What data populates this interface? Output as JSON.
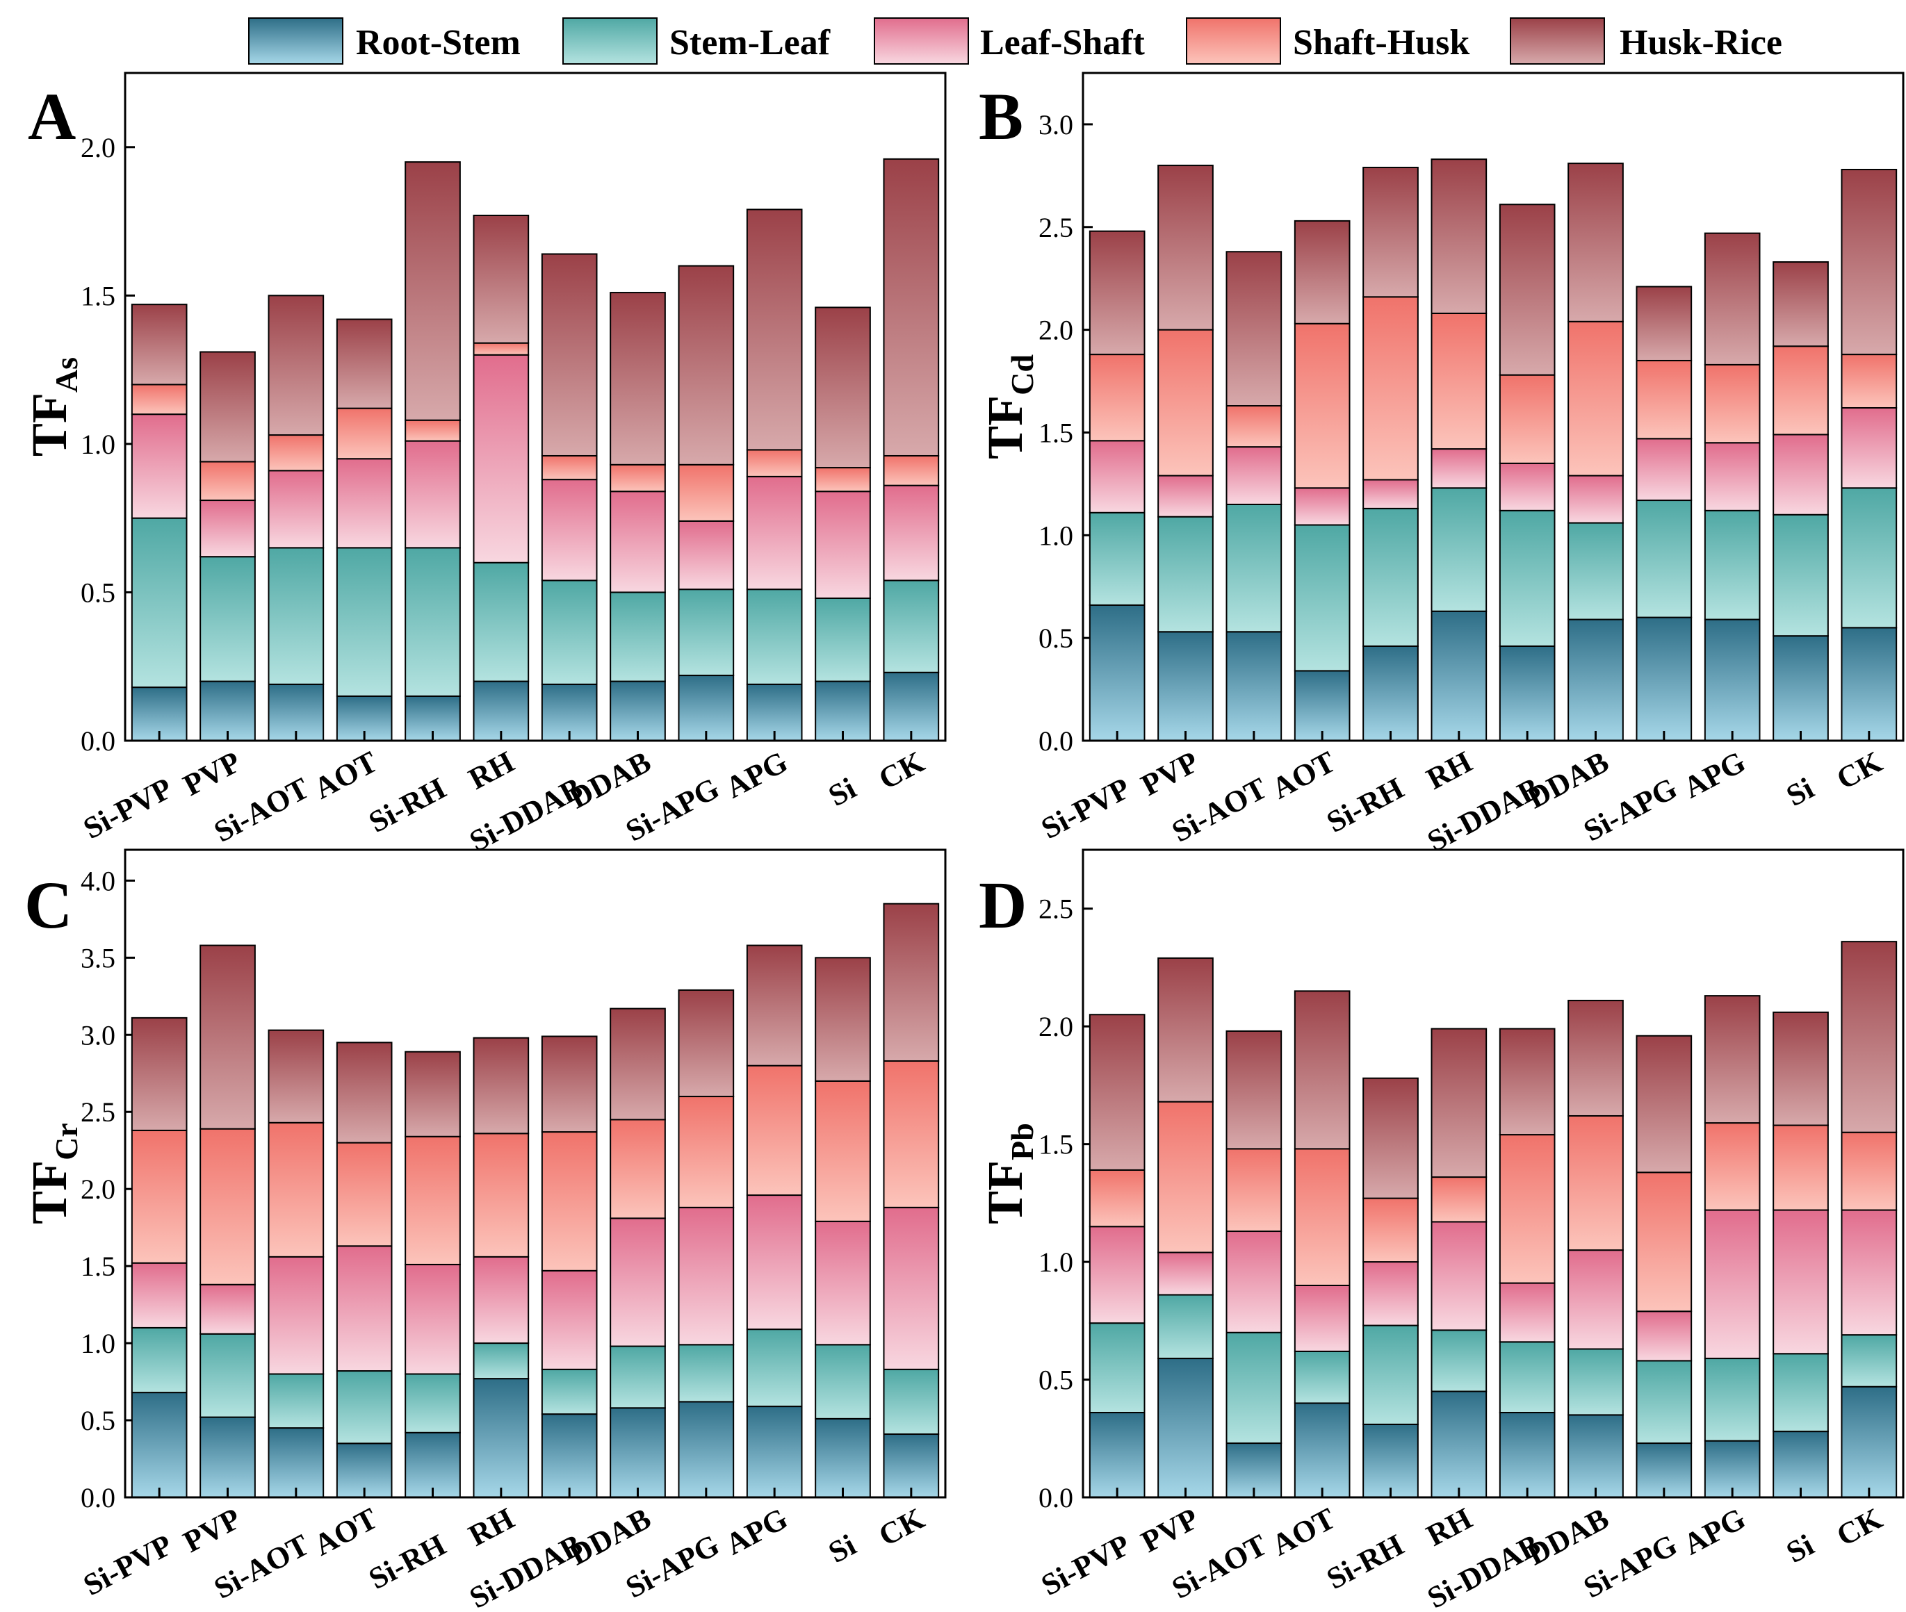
{
  "figure": {
    "segments": [
      "Root-Stem",
      "Stem-Leaf",
      "Leaf-Shaft",
      "Shaft-Husk",
      "Husk-Rice"
    ],
    "colors": {
      "Root-Stem": [
        "#2e6e87",
        "#a6d7e8"
      ],
      "Stem-Leaf": [
        "#4fa8a4",
        "#b4e3e0"
      ],
      "Leaf-Shaft": [
        "#e16d8d",
        "#f8d7e0"
      ],
      "Shaft-Husk": [
        "#f0736b",
        "#fcc4bb"
      ],
      "Husk-Rice": [
        "#9b4148",
        "#d7a9ab"
      ]
    }
  },
  "chart_data": [
    {
      "type": "bar",
      "stacked": true,
      "panel": "A",
      "ylabel": "TF",
      "ylabel_sub": "As",
      "ylim": [
        0,
        2.25
      ],
      "yticks": [
        "0.0",
        "0.5",
        "1.0",
        "1.5",
        "2.0"
      ],
      "categories": [
        "Si-PVP",
        "PVP",
        "Si-AOT",
        "AOT",
        "Si-RH",
        "RH",
        "Si-DDAB",
        "DDAB",
        "Si-APG",
        "APG",
        "Si",
        "CK"
      ],
      "series": [
        {
          "name": "Root-Stem",
          "values": [
            0.18,
            0.2,
            0.19,
            0.15,
            0.15,
            0.2,
            0.19,
            0.2,
            0.22,
            0.19,
            0.2,
            0.23
          ]
        },
        {
          "name": "Stem-Leaf",
          "values": [
            0.57,
            0.42,
            0.46,
            0.5,
            0.5,
            0.4,
            0.35,
            0.3,
            0.29,
            0.32,
            0.28,
            0.31
          ]
        },
        {
          "name": "Leaf-Shaft",
          "values": [
            0.35,
            0.19,
            0.26,
            0.3,
            0.36,
            0.7,
            0.34,
            0.34,
            0.23,
            0.38,
            0.36,
            0.32
          ]
        },
        {
          "name": "Shaft-Husk",
          "values": [
            0.1,
            0.13,
            0.12,
            0.17,
            0.07,
            0.04,
            0.08,
            0.09,
            0.19,
            0.09,
            0.08,
            0.1
          ]
        },
        {
          "name": "Husk-Rice",
          "values": [
            0.27,
            0.37,
            0.47,
            0.3,
            0.87,
            0.43,
            0.68,
            0.58,
            0.67,
            0.81,
            0.54,
            1.0
          ]
        }
      ]
    },
    {
      "type": "bar",
      "stacked": true,
      "panel": "B",
      "ylabel": "TF",
      "ylabel_sub": "Cd",
      "ylim": [
        0,
        3.25
      ],
      "yticks": [
        "0.0",
        "0.5",
        "1.0",
        "1.5",
        "2.0",
        "2.5",
        "3.0"
      ],
      "categories": [
        "Si-PVP",
        "PVP",
        "Si-AOT",
        "AOT",
        "Si-RH",
        "RH",
        "Si-DDAB",
        "DDAB",
        "Si-APG",
        "APG",
        "Si",
        "CK"
      ],
      "series": [
        {
          "name": "Root-Stem",
          "values": [
            0.66,
            0.53,
            0.53,
            0.34,
            0.46,
            0.63,
            0.46,
            0.59,
            0.6,
            0.59,
            0.51,
            0.55
          ]
        },
        {
          "name": "Stem-Leaf",
          "values": [
            0.45,
            0.56,
            0.62,
            0.71,
            0.67,
            0.6,
            0.66,
            0.47,
            0.57,
            0.53,
            0.59,
            0.68
          ]
        },
        {
          "name": "Leaf-Shaft",
          "values": [
            0.35,
            0.2,
            0.28,
            0.18,
            0.14,
            0.19,
            0.23,
            0.23,
            0.3,
            0.33,
            0.39,
            0.39
          ]
        },
        {
          "name": "Shaft-Husk",
          "values": [
            0.42,
            0.71,
            0.2,
            0.8,
            0.89,
            0.66,
            0.43,
            0.75,
            0.38,
            0.38,
            0.43,
            0.26
          ]
        },
        {
          "name": "Husk-Rice",
          "values": [
            0.6,
            0.8,
            0.75,
            0.5,
            0.63,
            0.75,
            0.83,
            0.77,
            0.36,
            0.64,
            0.41,
            0.9
          ]
        }
      ]
    },
    {
      "type": "bar",
      "stacked": true,
      "panel": "C",
      "ylabel": "TF",
      "ylabel_sub": "Cr",
      "ylim": [
        0,
        4.2
      ],
      "yticks": [
        "0.0",
        "0.5",
        "1.0",
        "1.5",
        "2.0",
        "2.5",
        "3.0",
        "3.5",
        "4.0"
      ],
      "categories": [
        "Si-PVP",
        "PVP",
        "Si-AOT",
        "AOT",
        "Si-RH",
        "RH",
        "Si-DDAB",
        "DDAB",
        "Si-APG",
        "APG",
        "Si",
        "CK"
      ],
      "series": [
        {
          "name": "Root-Stem",
          "values": [
            0.68,
            0.52,
            0.45,
            0.35,
            0.42,
            0.77,
            0.54,
            0.58,
            0.62,
            0.59,
            0.51,
            0.41
          ]
        },
        {
          "name": "Stem-Leaf",
          "values": [
            0.42,
            0.54,
            0.35,
            0.47,
            0.38,
            0.23,
            0.29,
            0.4,
            0.37,
            0.5,
            0.48,
            0.42
          ]
        },
        {
          "name": "Leaf-Shaft",
          "values": [
            0.42,
            0.32,
            0.76,
            0.81,
            0.71,
            0.56,
            0.64,
            0.83,
            0.89,
            0.87,
            0.8,
            1.05
          ]
        },
        {
          "name": "Shaft-Husk",
          "values": [
            0.86,
            1.01,
            0.87,
            0.67,
            0.83,
            0.8,
            0.9,
            0.64,
            0.72,
            0.84,
            0.91,
            0.95
          ]
        },
        {
          "name": "Husk-Rice",
          "values": [
            0.73,
            1.19,
            0.6,
            0.65,
            0.55,
            0.62,
            0.62,
            0.72,
            0.69,
            0.78,
            0.8,
            1.02
          ]
        }
      ]
    },
    {
      "type": "bar",
      "stacked": true,
      "panel": "D",
      "ylabel": "TF",
      "ylabel_sub": "Pb",
      "ylim": [
        0,
        2.75
      ],
      "yticks": [
        "0.0",
        "0.5",
        "1.0",
        "1.5",
        "2.0",
        "2.5"
      ],
      "categories": [
        "Si-PVP",
        "PVP",
        "Si-AOT",
        "AOT",
        "Si-RH",
        "RH",
        "Si-DDAB",
        "DDAB",
        "Si-APG",
        "APG",
        "Si",
        "CK"
      ],
      "series": [
        {
          "name": "Root-Stem",
          "values": [
            0.36,
            0.59,
            0.23,
            0.4,
            0.31,
            0.45,
            0.36,
            0.35,
            0.23,
            0.24,
            0.28,
            0.47
          ]
        },
        {
          "name": "Stem-Leaf",
          "values": [
            0.38,
            0.27,
            0.47,
            0.22,
            0.42,
            0.26,
            0.3,
            0.28,
            0.35,
            0.35,
            0.33,
            0.22
          ]
        },
        {
          "name": "Leaf-Shaft",
          "values": [
            0.41,
            0.18,
            0.43,
            0.28,
            0.27,
            0.46,
            0.25,
            0.42,
            0.21,
            0.63,
            0.61,
            0.53
          ]
        },
        {
          "name": "Shaft-Husk",
          "values": [
            0.24,
            0.64,
            0.35,
            0.58,
            0.27,
            0.19,
            0.63,
            0.57,
            0.59,
            0.37,
            0.36,
            0.33
          ]
        },
        {
          "name": "Husk-Rice",
          "values": [
            0.66,
            0.61,
            0.5,
            0.67,
            0.51,
            0.63,
            0.45,
            0.49,
            0.58,
            0.54,
            0.48,
            0.81
          ]
        }
      ]
    }
  ]
}
